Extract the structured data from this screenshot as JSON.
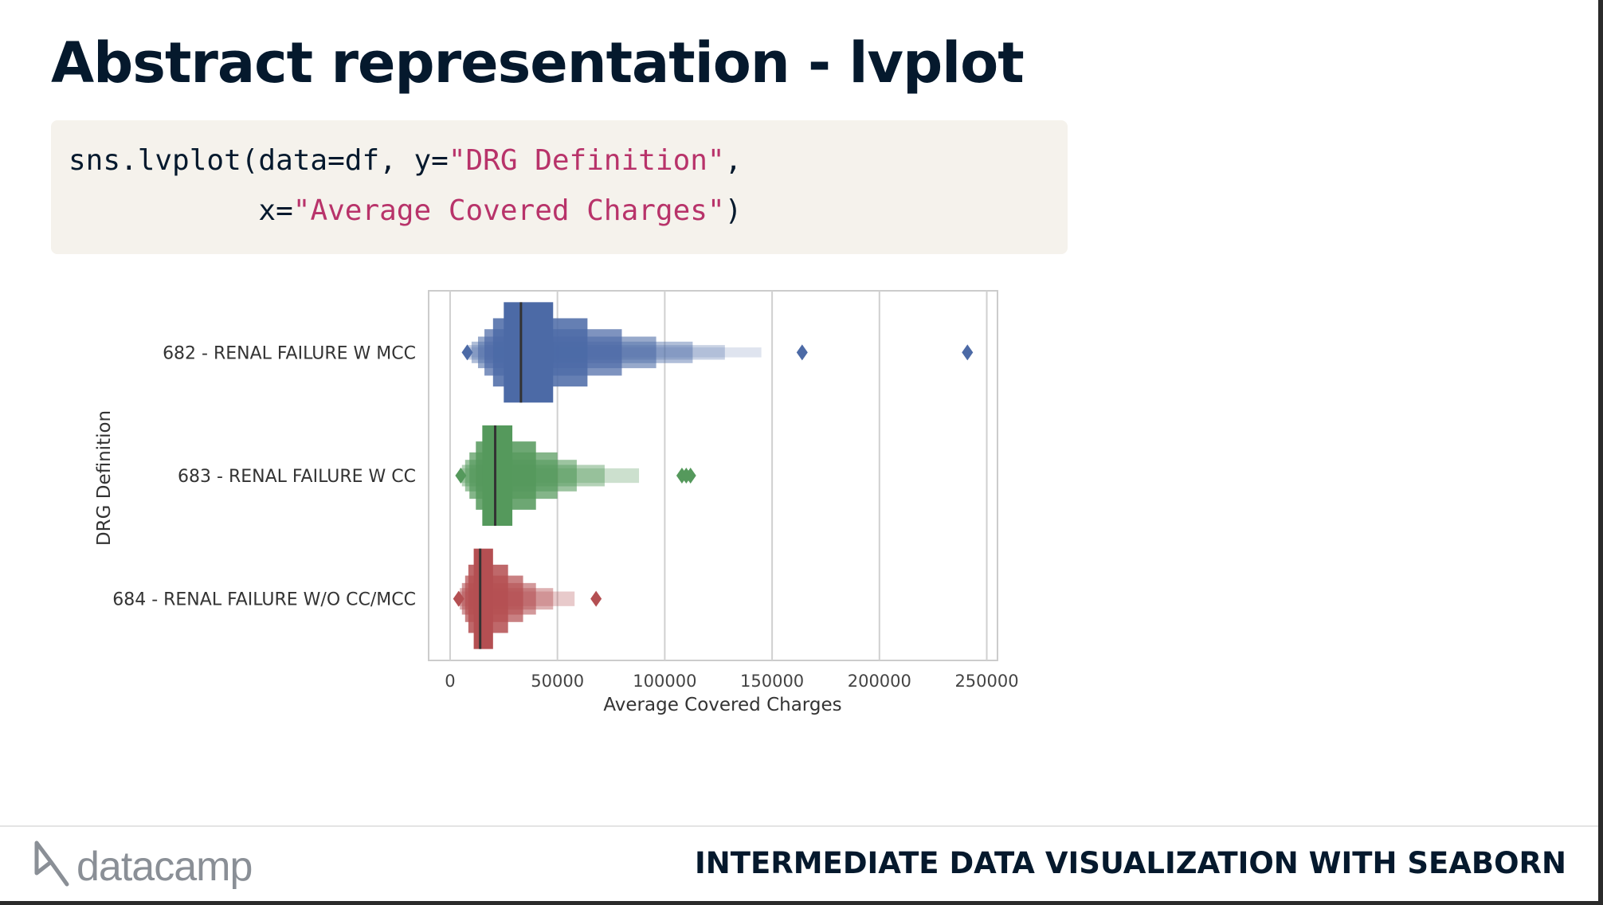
{
  "slide": {
    "title": "Abstract representation - lvplot"
  },
  "code": {
    "line1_prefix": "sns.lvplot(data=df, y=",
    "line1_string": "\"DRG Definition\"",
    "line1_suffix": ",",
    "line2_prefix": "           x=",
    "line2_string": "\"Average Covered Charges\"",
    "line2_suffix": ")"
  },
  "chart_data": {
    "type": "letter-value (boxen) plot",
    "xlabel": "Average Covered Charges",
    "ylabel": "DRG Definition",
    "xlim": [
      -10000,
      255000
    ],
    "xticks": [
      0,
      50000,
      100000,
      150000,
      200000,
      250000
    ],
    "grid": "vertical",
    "categories": [
      "682 - RENAL FAILURE W MCC",
      "683 - RENAL FAILURE W CC",
      "684 - RENAL FAILURE W/O CC/MCC"
    ],
    "series": [
      {
        "color": "#4c6aa6",
        "median": 33000,
        "boxes": [
          [
            25000,
            48000
          ],
          [
            20000,
            64000
          ],
          [
            16000,
            80000
          ],
          [
            13000,
            96000
          ],
          [
            10000,
            113000
          ],
          [
            8000,
            128000
          ],
          [
            7000,
            145000
          ]
        ],
        "outliers": [
          8000,
          164000,
          241000
        ]
      },
      {
        "color": "#55995c",
        "median": 21000,
        "boxes": [
          [
            15000,
            29000
          ],
          [
            12000,
            40000
          ],
          [
            9000,
            50000
          ],
          [
            7000,
            59000
          ],
          [
            5500,
            72000
          ],
          [
            4500,
            88000
          ]
        ],
        "outliers": [
          5000,
          108000,
          110000,
          112000
        ]
      },
      {
        "color": "#b44f52",
        "median": 14000,
        "boxes": [
          [
            11000,
            20000
          ],
          [
            8500,
            27000
          ],
          [
            7000,
            34000
          ],
          [
            5500,
            40000
          ],
          [
            4500,
            48000
          ],
          [
            3500,
            58000
          ]
        ],
        "outliers": [
          4000,
          68000
        ]
      }
    ]
  },
  "footer": {
    "logo_text": "datacamp",
    "course_title": "INTERMEDIATE DATA VISUALIZATION WITH SEABORN"
  }
}
